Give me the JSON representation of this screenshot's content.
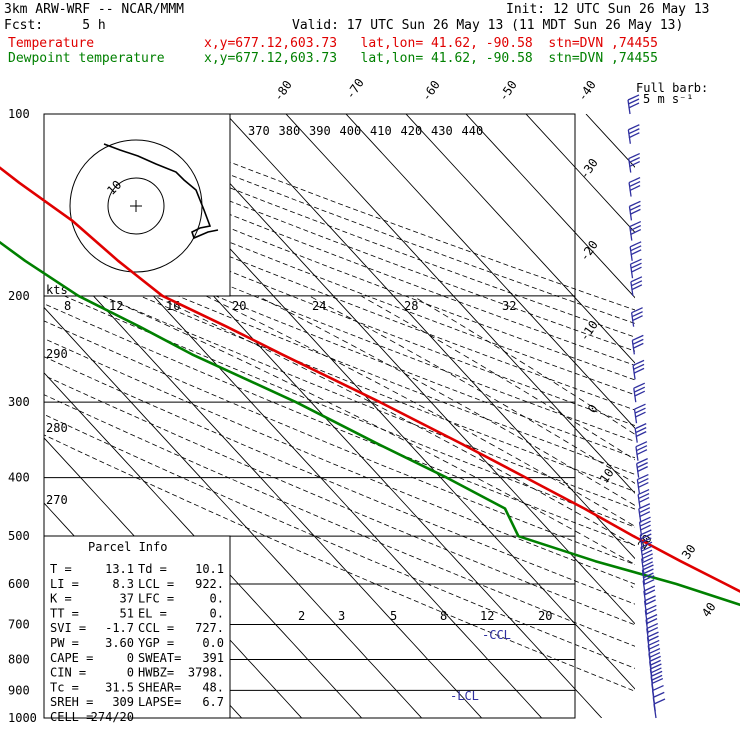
{
  "header": {
    "model": "3km ARW-WRF -- NCAR/MMM",
    "init": "Init: 12 UTC Sun 26 May 13",
    "fcst": "Fcst:     5 h",
    "valid": "Valid: 17 UTC Sun 26 May 13 (11 MDT Sun 26 May 13)",
    "temp_label": "Temperature",
    "temp_loc": "x,y=677.12,603.73   lat,lon= 41.62, -90.58  stn=DVN ,74455",
    "dew_label": "Dewpoint temperature",
    "dew_loc": "x,y=677.12,603.73   lat,lon= 41.62, -90.58  stn=DVN ,74455"
  },
  "colors": {
    "temperature": "#e00000",
    "dewpoint": "#008000",
    "wind": "#3030a0",
    "grid": "#000000"
  },
  "chart_data": {
    "type": "line",
    "yscale": "log",
    "ylabel": "",
    "xlabel": "",
    "pressure_ticks": [
      100,
      200,
      300,
      400,
      500,
      600,
      700,
      800,
      900,
      1000
    ],
    "isotherm_labels": [
      -80,
      -70,
      -60,
      -50,
      -40,
      -30,
      -20,
      -10,
      0,
      10,
      20,
      30,
      40
    ],
    "theta_labels": [
      370,
      380,
      390,
      400,
      410,
      420,
      430,
      440
    ],
    "theta_side_labels": [
      290,
      280,
      270
    ],
    "mixing_ratio_labels": [
      2,
      3,
      5,
      8,
      12,
      20
    ],
    "hodograph_labels": {
      "units": "kts",
      "ring_label": "10",
      "speed_ticks": [
        8,
        12,
        16,
        20,
        24,
        28,
        32
      ]
    },
    "full_barb_label": "Full barb:",
    "full_barb_value": "5 m s⁻¹",
    "ccl_label": "-CCL",
    "lcl_label": "-LCL",
    "series": [
      {
        "name": "Temperature",
        "points": [
          [
            1000,
            13.1
          ],
          [
            980,
            12.2
          ],
          [
            960,
            13.8
          ],
          [
            925,
            15.0
          ],
          [
            900,
            15.5
          ],
          [
            850,
            15.8
          ],
          [
            800,
            14.5
          ],
          [
            750,
            11.5
          ],
          [
            700,
            8.2
          ],
          [
            650,
            4.8
          ],
          [
            600,
            1.2
          ],
          [
            550,
            -2.8
          ],
          [
            500,
            -6.8
          ],
          [
            450,
            -10.8
          ],
          [
            400,
            -15.8
          ],
          [
            350,
            -21.5
          ],
          [
            300,
            -28.5
          ],
          [
            250,
            -37.5
          ],
          [
            225,
            -42.5
          ],
          [
            200,
            -48.5
          ],
          [
            175,
            -50.5
          ],
          [
            150,
            -52.0
          ],
          [
            130,
            -55.0
          ],
          [
            115,
            -57.0
          ],
          [
            100,
            -57.5
          ]
        ]
      },
      {
        "name": "Dewpoint temperature",
        "points": [
          [
            1000,
            10.1
          ],
          [
            980,
            10.2
          ],
          [
            960,
            11.5
          ],
          [
            925,
            13.0
          ],
          [
            900,
            14.0
          ],
          [
            850,
            14.5
          ],
          [
            800,
            13.0
          ],
          [
            750,
            10.0
          ],
          [
            700,
            6.0
          ],
          [
            650,
            0.5
          ],
          [
            600,
            -7.0
          ],
          [
            550,
            -17.0
          ],
          [
            500,
            -26.0
          ],
          [
            450,
            -24.0
          ],
          [
            400,
            -29.0
          ],
          [
            350,
            -35.5
          ],
          [
            300,
            -42.5
          ],
          [
            250,
            -52.5
          ],
          [
            225,
            -57.0
          ],
          [
            200,
            -62.5
          ],
          [
            175,
            -66.0
          ],
          [
            150,
            -69.0
          ],
          [
            130,
            -72.0
          ],
          [
            115,
            -74.0
          ],
          [
            100,
            -74.0
          ]
        ]
      }
    ],
    "wind_barbs_pressure": [
      1000,
      975,
      950,
      925,
      900,
      875,
      850,
      825,
      800,
      775,
      750,
      725,
      700,
      675,
      650,
      625,
      600,
      575,
      550,
      525,
      500,
      475,
      450,
      425,
      400,
      375,
      350,
      325,
      300,
      275,
      250,
      225,
      200,
      187,
      175,
      162,
      150,
      137,
      125,
      112,
      100
    ]
  },
  "parcel_info": {
    "title": "Parcel Info",
    "rows": [
      [
        "T  =",
        "13.1",
        "Td =",
        "10.1"
      ],
      [
        "LI =",
        "8.3",
        "LCL =",
        "922."
      ],
      [
        "K  =",
        "37",
        "LFC =",
        "0."
      ],
      [
        "TT =",
        "51",
        "EL  =",
        "0."
      ],
      [
        "SVI =",
        "-1.7",
        "CCL =",
        "727."
      ],
      [
        "PW =",
        "3.60",
        "YGP =",
        "0.0"
      ],
      [
        "CAPE =",
        "0",
        "SWEAT=",
        "391"
      ],
      [
        "CIN =",
        "0",
        "HWBZ=",
        "3798."
      ],
      [
        "Tc =",
        "31.5",
        "SHEAR=",
        "48."
      ],
      [
        "SREH =",
        "309",
        "LAPSE=",
        "6.7"
      ],
      [
        "CELL =",
        "274/20",
        "",
        ""
      ]
    ]
  }
}
